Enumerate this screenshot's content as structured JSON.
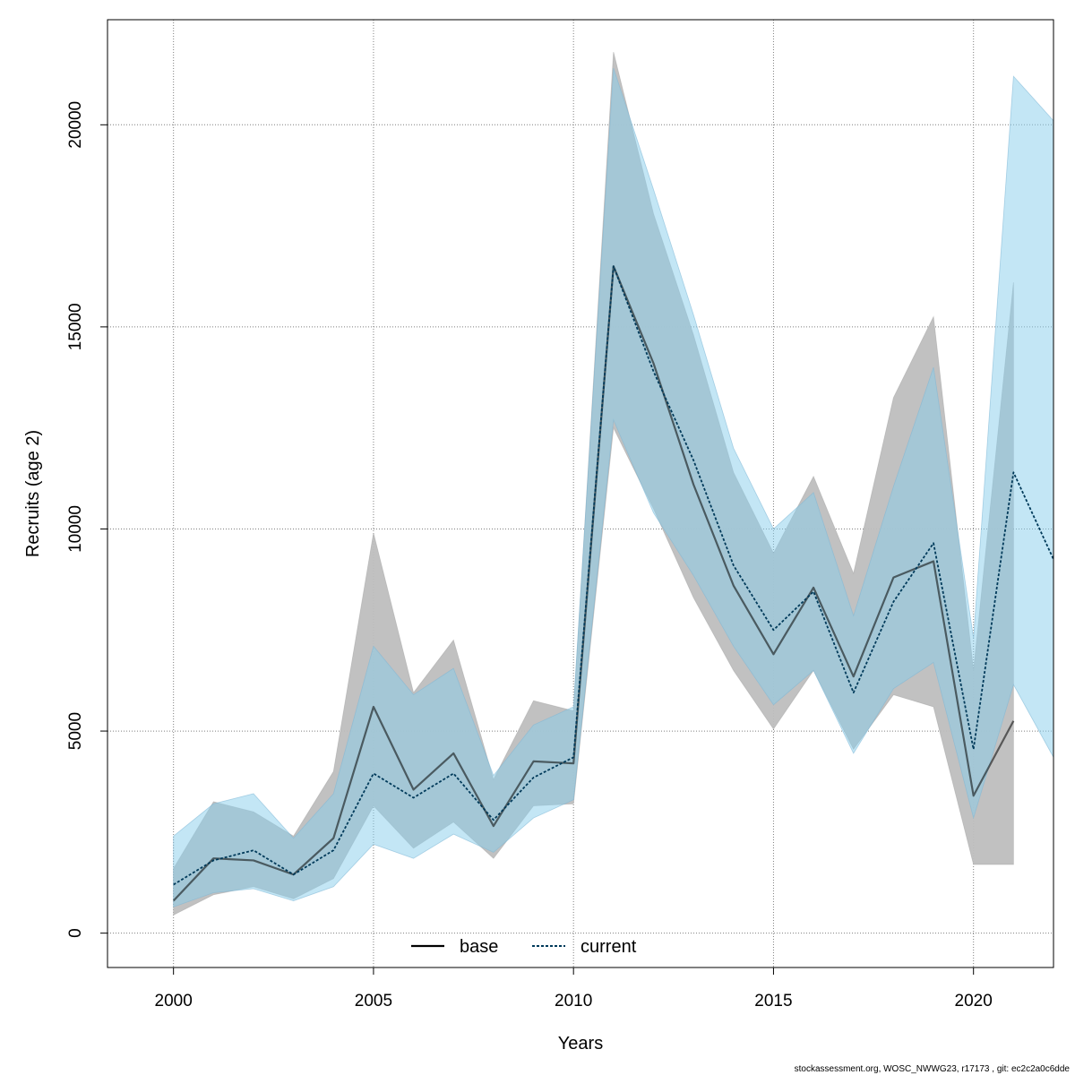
{
  "chart_data": {
    "type": "area",
    "xlabel": "Years",
    "ylabel": "Recruits (age 2)",
    "xlim": [
      1998.35,
      2022
    ],
    "ylim": [
      -850,
      22600
    ],
    "x_ticks": [
      2000,
      2005,
      2010,
      2015,
      2020
    ],
    "y_ticks": [
      0,
      5000,
      10000,
      15000,
      20000
    ],
    "grid": true,
    "legend_position": "bottom-center",
    "colors": {
      "base_band": "#bebebe",
      "current_band": "#87ceeb",
      "base_line": "#000000",
      "current_line": "#003a5a"
    },
    "series": [
      {
        "name": "base",
        "x": [
          2000,
          2001,
          2002,
          2003,
          2004,
          2005,
          2006,
          2007,
          2008,
          2009,
          2010,
          2011,
          2012,
          2013,
          2014,
          2015,
          2016,
          2017,
          2018,
          2019,
          2020,
          2021
        ],
        "values": [
          800,
          1850,
          1800,
          1450,
          2350,
          5600,
          3550,
          4450,
          2650,
          4250,
          4200,
          16500,
          14100,
          11100,
          8600,
          6900,
          8550,
          6350,
          8800,
          9200,
          3400,
          5250
        ],
        "lower": [
          450,
          950,
          1150,
          850,
          1350,
          3150,
          2100,
          2750,
          1850,
          3150,
          3200,
          12500,
          10500,
          8300,
          6500,
          5050,
          6500,
          4550,
          5900,
          5600,
          1700,
          1700
        ],
        "upper": [
          1600,
          3250,
          3000,
          2400,
          4000,
          9900,
          5950,
          7250,
          3800,
          5750,
          5500,
          21800,
          17800,
          14800,
          11400,
          9400,
          11300,
          8900,
          13250,
          15250,
          6500,
          16100
        ]
      },
      {
        "name": "current",
        "x": [
          2000,
          2001,
          2002,
          2003,
          2004,
          2005,
          2006,
          2007,
          2008,
          2009,
          2010,
          2011,
          2012,
          2013,
          2014,
          2015,
          2016,
          2017,
          2018,
          2019,
          2020,
          2021,
          2022
        ],
        "values": [
          1200,
          1800,
          2050,
          1450,
          2050,
          3950,
          3350,
          3950,
          2800,
          3850,
          4350,
          16500,
          13900,
          11700,
          9100,
          7500,
          8450,
          5950,
          8200,
          9650,
          4550,
          11400,
          9250
        ],
        "lower": [
          650,
          1000,
          1100,
          800,
          1150,
          2200,
          1850,
          2450,
          2000,
          2850,
          3300,
          12700,
          10400,
          8850,
          7100,
          5650,
          6500,
          4450,
          6050,
          6700,
          2850,
          6150,
          4350
        ],
        "upper": [
          2400,
          3200,
          3450,
          2350,
          3450,
          7100,
          5900,
          6550,
          3900,
          5150,
          5600,
          21400,
          18400,
          15300,
          12000,
          10000,
          10900,
          7850,
          11050,
          14000,
          7300,
          21200,
          20100
        ]
      }
    ]
  },
  "footer": {
    "text": "stockassessment.org, WOSC_NWWG23, r17173 , git: ec2c2a0c6dde"
  }
}
